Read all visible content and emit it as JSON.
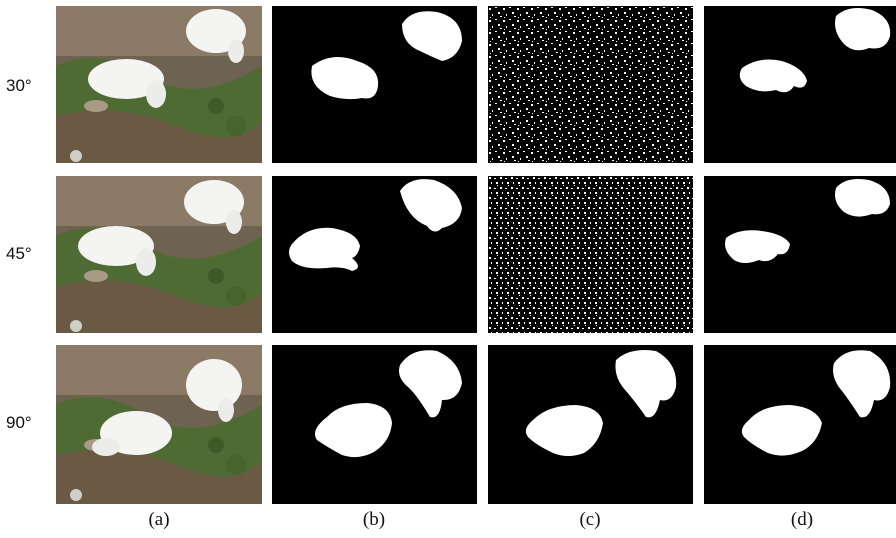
{
  "rows": [
    {
      "label": "30°"
    },
    {
      "label": "45°"
    },
    {
      "label": "90°"
    }
  ],
  "columns": [
    {
      "label": "(a)"
    },
    {
      "label": "(b)"
    },
    {
      "label": "(c)"
    },
    {
      "label": "(d)"
    }
  ],
  "colors": {
    "mask_background": "#000000",
    "mask_foreground": "#ffffff",
    "photo_grass": "#5a7a3a",
    "photo_soil": "#7b6650",
    "goat": "#f4f4f2"
  }
}
